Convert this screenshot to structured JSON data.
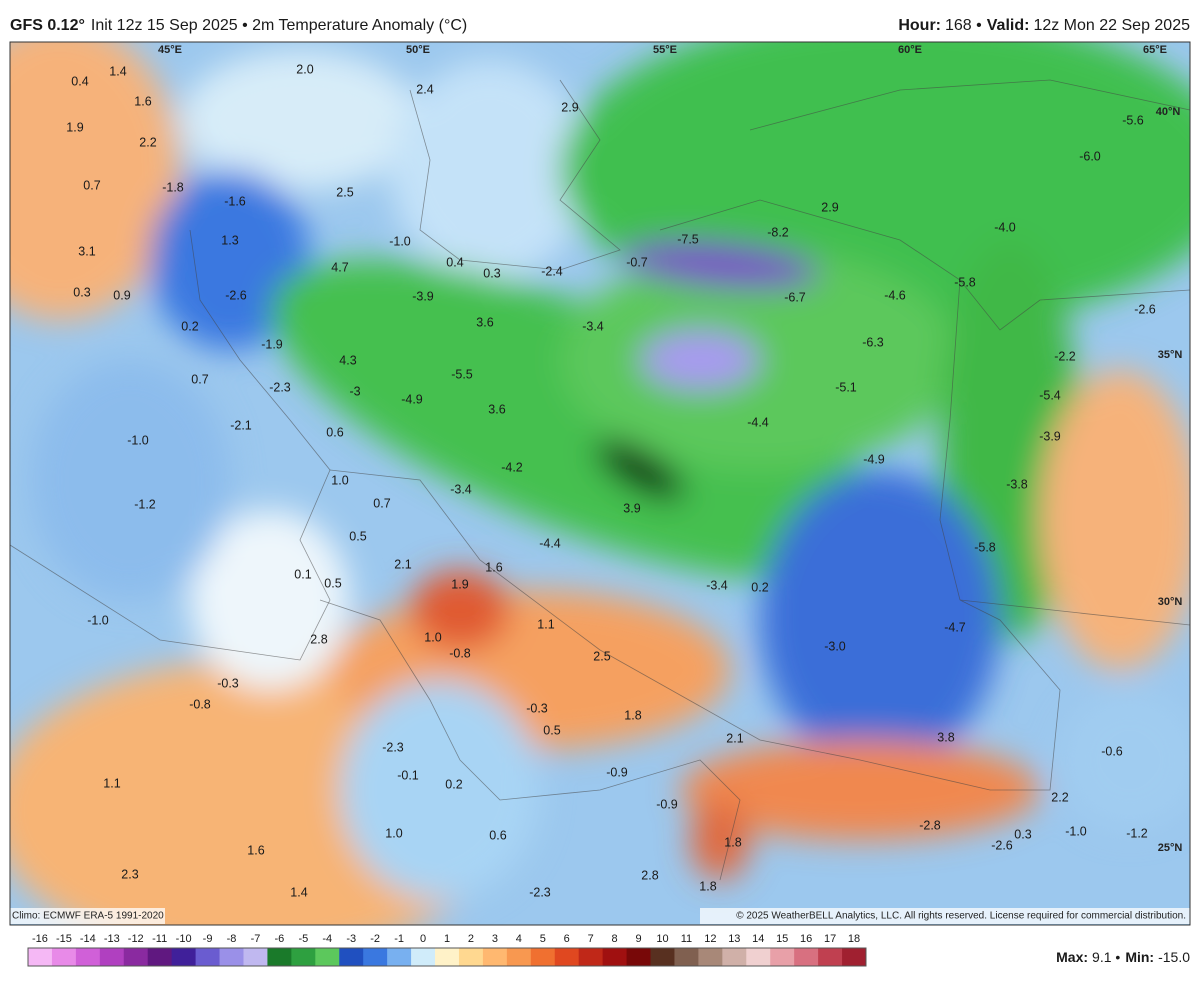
{
  "header": {
    "model": "GFS 0.12°",
    "subtitle": "Init 12z 15 Sep 2025 • 2m Temperature Anomaly (°C)",
    "hour_label": "Hour:",
    "hour": "168 •",
    "valid_label": "Valid:",
    "valid": "12z Mon 22 Sep 2025"
  },
  "grid_labels": [
    "45°E",
    "50°E",
    "55°E",
    "60°E",
    "65°E",
    "40°N",
    "35°N",
    "30°N",
    "25°N"
  ],
  "map_labels": [
    "0.4",
    "1.4",
    "1.6",
    "2.0",
    "2.4",
    "1.9",
    "2.2",
    "0.7",
    "-1.8",
    "-1.6",
    "2.5",
    "2.9",
    "3.1",
    "1.3",
    "-1.0",
    "0.4",
    "0.3",
    "-2.4",
    "-0.7",
    "-7.5",
    "-8.2",
    "2.9",
    "-4.0",
    "-6.0",
    "-5.6",
    "4.7",
    "0.3",
    "0.9",
    "-2.6",
    "-3.9",
    "-6.7",
    "-4.6",
    "-5.8",
    "-2.6",
    "0.2",
    "3.6",
    "-3.4",
    "-6.3",
    "-1.9",
    "-2.2",
    "4.3",
    "-5.5",
    "0.7",
    "-2.3",
    "-3",
    "-4.9",
    "-5.1",
    "-5.4",
    "3.6",
    "-1.0",
    "-2.1",
    "0.6",
    "-4.4",
    "-3.9",
    "-4.9",
    "-4.2",
    "1.0",
    "-3.4",
    "-3.8",
    "0.7",
    "-1.2",
    "3.9",
    "0.5",
    "-4.4",
    "-5.8",
    "2.1",
    "1.6",
    "0.1",
    "0.5",
    "1.9",
    "-3.4",
    "0.2",
    "-1.0",
    "1.1",
    "-4.7",
    "1.0",
    "2.8",
    "-0.8",
    "-3.0",
    "2.5",
    "-0.3",
    "-0.8",
    "-0.3",
    "1.8",
    "0.5",
    "3.8",
    "2.1",
    "-2.3",
    "-0.6",
    "-0.1",
    "-0.9",
    "1.1",
    "0.2",
    "2.2",
    "-0.9",
    "1.0",
    "0.6",
    "-2.8",
    "-1.0",
    "-1.2",
    "-2.6",
    "0.3",
    "1.6",
    "1.8",
    "2.8",
    "2.3",
    "-2.3",
    "1.4",
    "1.8"
  ],
  "footer": {
    "climo": "Climo: ECMWF ERA-5 1991-2020",
    "copyright": "© 2025 WeatherBELL Analytics, LLC. All rights reserved. License required for commercial distribution.",
    "max_label": "Max:",
    "max": "9.1 •",
    "min_label": "Min:",
    "min": "-15.0"
  },
  "colorbar": {
    "ticks": [
      -16,
      -15,
      -14,
      -13,
      -12,
      -11,
      -10,
      -9,
      -8,
      -7,
      -6,
      -5,
      -4,
      -3,
      -2,
      -1,
      0,
      1,
      2,
      3,
      4,
      5,
      6,
      7,
      8,
      9,
      10,
      11,
      12,
      13,
      14,
      15,
      16,
      17,
      18
    ],
    "colors": [
      "#f5b8f5",
      "#e88ae8",
      "#d060d8",
      "#b040c0",
      "#8a2aa0",
      "#601880",
      "#40209a",
      "#6a5cd0",
      "#9a90e8",
      "#c0b8f0",
      "#1a7a2a",
      "#2ea040",
      "#5cc85c",
      "#2050c0",
      "#3a78e0",
      "#78b0f0",
      "#d0ecfa",
      "#fff2c8",
      "#ffd890",
      "#ffb870",
      "#f89850",
      "#f07030",
      "#e04820",
      "#c02818",
      "#a01010",
      "#780808",
      "#583020",
      "#806050",
      "#a88878",
      "#d0b0a8",
      "#f0d0d0",
      "#e8a0a8",
      "#d87080",
      "#c04050",
      "#a02030"
    ]
  }
}
